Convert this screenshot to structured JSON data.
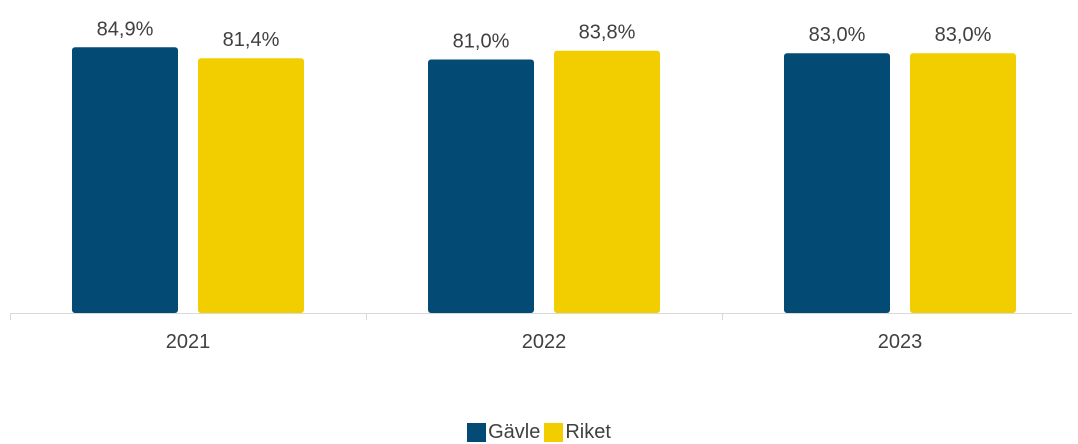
{
  "chart_data": {
    "type": "bar",
    "categories": [
      "2021",
      "2022",
      "2023"
    ],
    "series": [
      {
        "name": "Gävle",
        "values": [
          84.9,
          81.0,
          83.0
        ],
        "labels": [
          "84,9%",
          "81,0%",
          "83,0%"
        ],
        "color": "#034a75"
      },
      {
        "name": "Riket",
        "values": [
          81.4,
          83.8,
          83.0
        ],
        "labels": [
          "81,4%",
          "83,8%",
          "83,0%"
        ],
        "color": "#f2ce00"
      }
    ],
    "ylim": [
      0,
      100
    ],
    "grid": false,
    "legend_position": "bottom",
    "axis_color": "#d9d9d9"
  }
}
